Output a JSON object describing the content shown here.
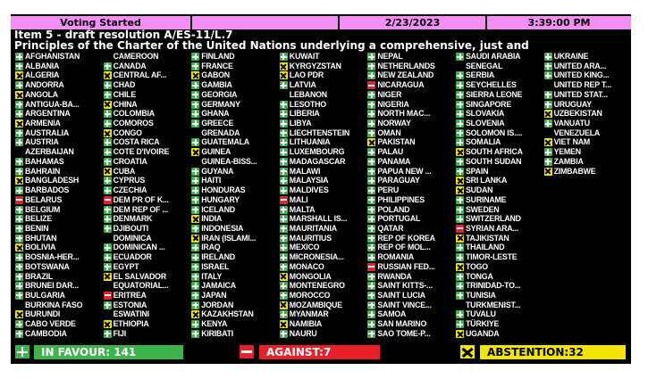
{
  "header": {
    "status": "Voting Started",
    "blank": "",
    "date": "2/23/2023",
    "time": "3:39:00 PM"
  },
  "item": {
    "line1": "Item 5 - draft resolution A/ES-11/L.7",
    "line2": "Principles of the Charter of the United Nations underlying a comprehensive, just and"
  },
  "colors": {
    "yes": "#3cb44b",
    "no": "#e8202a",
    "abstain": "#f2e600",
    "header": "#f58ef5"
  },
  "columns": [
    [
      {
        "name": "AFGHANISTAN",
        "vote": "yes"
      },
      {
        "name": "ALBANIA",
        "vote": "yes"
      },
      {
        "name": "ALGERIA",
        "vote": "abs"
      },
      {
        "name": "ANDORRA",
        "vote": "yes"
      },
      {
        "name": "ANGOLA",
        "vote": "abs"
      },
      {
        "name": "ANTIGUA-BA...",
        "vote": "yes"
      },
      {
        "name": "ARGENTINA",
        "vote": "yes"
      },
      {
        "name": "ARMENIA",
        "vote": "abs"
      },
      {
        "name": "AUSTRALIA",
        "vote": "yes"
      },
      {
        "name": "AUSTRIA",
        "vote": "yes"
      },
      {
        "name": "AZERBAIJAN",
        "vote": "none"
      },
      {
        "name": "BAHAMAS",
        "vote": "yes"
      },
      {
        "name": "BAHRAIN",
        "vote": "yes"
      },
      {
        "name": "BANGLADESH",
        "vote": "abs"
      },
      {
        "name": "BARBADOS",
        "vote": "yes"
      },
      {
        "name": "BELARUS",
        "vote": "no"
      },
      {
        "name": "BELGIUM",
        "vote": "yes"
      },
      {
        "name": "BELIZE",
        "vote": "yes"
      },
      {
        "name": "BENIN",
        "vote": "yes"
      },
      {
        "name": "BHUTAN",
        "vote": "yes"
      },
      {
        "name": "BOLIVIA",
        "vote": "abs"
      },
      {
        "name": "BOSNIA-HER...",
        "vote": "yes"
      },
      {
        "name": "BOTSWANA",
        "vote": "yes"
      },
      {
        "name": "BRAZIL",
        "vote": "yes"
      },
      {
        "name": "BRUNEI DAR...",
        "vote": "yes"
      },
      {
        "name": "BULGARIA",
        "vote": "yes"
      },
      {
        "name": "BURKINA FASO",
        "vote": "none"
      },
      {
        "name": "BURUNDI",
        "vote": "abs"
      },
      {
        "name": "CABO VERDE",
        "vote": "yes"
      },
      {
        "name": "CAMBODIA",
        "vote": "yes"
      }
    ],
    [
      {
        "name": "CAMEROON",
        "vote": "none"
      },
      {
        "name": "CANADA",
        "vote": "yes"
      },
      {
        "name": "CENTRAL AF...",
        "vote": "abs"
      },
      {
        "name": "CHAD",
        "vote": "yes"
      },
      {
        "name": "CHILE",
        "vote": "yes"
      },
      {
        "name": "CHINA",
        "vote": "abs"
      },
      {
        "name": "COLOMBIA",
        "vote": "yes"
      },
      {
        "name": "COMOROS",
        "vote": "yes"
      },
      {
        "name": "CONGO",
        "vote": "abs"
      },
      {
        "name": "COSTA RICA",
        "vote": "yes"
      },
      {
        "name": "COTE D'IVOIRE",
        "vote": "yes"
      },
      {
        "name": "CROATIA",
        "vote": "yes"
      },
      {
        "name": "CUBA",
        "vote": "abs"
      },
      {
        "name": "CYPRUS",
        "vote": "yes"
      },
      {
        "name": "CZECHIA",
        "vote": "yes"
      },
      {
        "name": "DEM PR OF K...",
        "vote": "no"
      },
      {
        "name": "DEM REP OF ...",
        "vote": "yes"
      },
      {
        "name": "DENMARK",
        "vote": "yes"
      },
      {
        "name": "DJIBOUTI",
        "vote": "yes"
      },
      {
        "name": "DOMINICA",
        "vote": "none"
      },
      {
        "name": "DOMINICAN ...",
        "vote": "yes"
      },
      {
        "name": "ECUADOR",
        "vote": "yes"
      },
      {
        "name": "EGYPT",
        "vote": "yes"
      },
      {
        "name": "EL SALVADOR",
        "vote": "abs"
      },
      {
        "name": "EQUATORIAL...",
        "vote": "none"
      },
      {
        "name": "ERITREA",
        "vote": "no"
      },
      {
        "name": "ESTONIA",
        "vote": "yes"
      },
      {
        "name": "ESWATINI",
        "vote": "none"
      },
      {
        "name": "ETHIOPIA",
        "vote": "abs"
      },
      {
        "name": "FIJI",
        "vote": "yes"
      }
    ],
    [
      {
        "name": "FINLAND",
        "vote": "yes"
      },
      {
        "name": "FRANCE",
        "vote": "yes"
      },
      {
        "name": "GABON",
        "vote": "abs"
      },
      {
        "name": "GAMBIA",
        "vote": "yes"
      },
      {
        "name": "GEORGIA",
        "vote": "yes"
      },
      {
        "name": "GERMANY",
        "vote": "yes"
      },
      {
        "name": "GHANA",
        "vote": "yes"
      },
      {
        "name": "GREECE",
        "vote": "yes"
      },
      {
        "name": "GRENADA",
        "vote": "none"
      },
      {
        "name": "GUATEMALA",
        "vote": "yes"
      },
      {
        "name": "GUINEA",
        "vote": "abs"
      },
      {
        "name": "GUINEA-BISS...",
        "vote": "none"
      },
      {
        "name": "GUYANA",
        "vote": "yes"
      },
      {
        "name": "HAITI",
        "vote": "yes"
      },
      {
        "name": "HONDURAS",
        "vote": "yes"
      },
      {
        "name": "HUNGARY",
        "vote": "yes"
      },
      {
        "name": "ICELAND",
        "vote": "yes"
      },
      {
        "name": "INDIA",
        "vote": "abs"
      },
      {
        "name": "INDONESIA",
        "vote": "yes"
      },
      {
        "name": "IRAN (ISLAMI...",
        "vote": "abs"
      },
      {
        "name": "IRAQ",
        "vote": "yes"
      },
      {
        "name": "IRELAND",
        "vote": "yes"
      },
      {
        "name": "ISRAEL",
        "vote": "yes"
      },
      {
        "name": "ITALY",
        "vote": "yes"
      },
      {
        "name": "JAMAICA",
        "vote": "yes"
      },
      {
        "name": "JAPAN",
        "vote": "yes"
      },
      {
        "name": "JORDAN",
        "vote": "yes"
      },
      {
        "name": "KAZAKHSTAN",
        "vote": "abs"
      },
      {
        "name": "KENYA",
        "vote": "yes"
      },
      {
        "name": "KIRIBATI",
        "vote": "yes"
      }
    ],
    [
      {
        "name": "KUWAIT",
        "vote": "yes"
      },
      {
        "name": "KYRGYZSTAN",
        "vote": "abs"
      },
      {
        "name": "LAO PDR",
        "vote": "abs"
      },
      {
        "name": "LATVIA",
        "vote": "yes"
      },
      {
        "name": "LEBANON",
        "vote": "none"
      },
      {
        "name": "LESOTHO",
        "vote": "yes"
      },
      {
        "name": "LIBERIA",
        "vote": "yes"
      },
      {
        "name": "LIBYA",
        "vote": "yes"
      },
      {
        "name": "LIECHTENSTEIN",
        "vote": "yes"
      },
      {
        "name": "LITHUANIA",
        "vote": "yes"
      },
      {
        "name": "LUXEMBOURG",
        "vote": "yes"
      },
      {
        "name": "MADAGASCAR",
        "vote": "yes"
      },
      {
        "name": "MALAWI",
        "vote": "yes"
      },
      {
        "name": "MALAYSIA",
        "vote": "yes"
      },
      {
        "name": "MALDIVES",
        "vote": "yes"
      },
      {
        "name": "MALI",
        "vote": "no"
      },
      {
        "name": "MALTA",
        "vote": "yes"
      },
      {
        "name": "MARSHALL IS...",
        "vote": "yes"
      },
      {
        "name": "MAURITANIA",
        "vote": "yes"
      },
      {
        "name": "MAURITIUS",
        "vote": "yes"
      },
      {
        "name": "MEXICO",
        "vote": "yes"
      },
      {
        "name": "MICRONESIA...",
        "vote": "yes"
      },
      {
        "name": "MONACO",
        "vote": "yes"
      },
      {
        "name": "MONGOLIA",
        "vote": "abs"
      },
      {
        "name": "MONTENEGRO",
        "vote": "yes"
      },
      {
        "name": "MOROCCO",
        "vote": "yes"
      },
      {
        "name": "MOZAMBIQUE",
        "vote": "abs"
      },
      {
        "name": "MYANMAR",
        "vote": "yes"
      },
      {
        "name": "NAMIBIA",
        "vote": "abs"
      },
      {
        "name": "NAURU",
        "vote": "yes"
      }
    ],
    [
      {
        "name": "NEPAL",
        "vote": "yes"
      },
      {
        "name": "NETHERLANDS",
        "vote": "yes"
      },
      {
        "name": "NEW ZEALAND",
        "vote": "yes"
      },
      {
        "name": "NICARAGUA",
        "vote": "no"
      },
      {
        "name": "NIGER",
        "vote": "yes"
      },
      {
        "name": "NIGERIA",
        "vote": "yes"
      },
      {
        "name": "NORTH MAC...",
        "vote": "yes"
      },
      {
        "name": "NORWAY",
        "vote": "yes"
      },
      {
        "name": "OMAN",
        "vote": "yes"
      },
      {
        "name": "PAKISTAN",
        "vote": "abs"
      },
      {
        "name": "PALAU",
        "vote": "yes"
      },
      {
        "name": "PANAMA",
        "vote": "yes"
      },
      {
        "name": "PAPUA NEW ...",
        "vote": "yes"
      },
      {
        "name": "PARAGUAY",
        "vote": "yes"
      },
      {
        "name": "PERU",
        "vote": "yes"
      },
      {
        "name": "PHILIPPINES",
        "vote": "yes"
      },
      {
        "name": "POLAND",
        "vote": "yes"
      },
      {
        "name": "PORTUGAL",
        "vote": "yes"
      },
      {
        "name": "QATAR",
        "vote": "yes"
      },
      {
        "name": "REP OF KOREA",
        "vote": "yes"
      },
      {
        "name": "REP OF MOL...",
        "vote": "yes"
      },
      {
        "name": "ROMANIA",
        "vote": "yes"
      },
      {
        "name": "RUSSIAN FED...",
        "vote": "no"
      },
      {
        "name": "RWANDA",
        "vote": "yes"
      },
      {
        "name": "SAINT KITTS-...",
        "vote": "yes"
      },
      {
        "name": "SAINT LUCIA",
        "vote": "yes"
      },
      {
        "name": "SAINT VINCE...",
        "vote": "yes"
      },
      {
        "name": "SAMOA",
        "vote": "yes"
      },
      {
        "name": "SAN MARINO",
        "vote": "yes"
      },
      {
        "name": "SAO TOME-P...",
        "vote": "yes"
      }
    ],
    [
      {
        "name": "SAUDI ARABIA",
        "vote": "yes"
      },
      {
        "name": "SENEGAL",
        "vote": "none"
      },
      {
        "name": "SERBIA",
        "vote": "yes"
      },
      {
        "name": "SEYCHELLES",
        "vote": "yes"
      },
      {
        "name": "SIERRA LEONE",
        "vote": "yes"
      },
      {
        "name": "SINGAPORE",
        "vote": "yes"
      },
      {
        "name": "SLOVAKIA",
        "vote": "yes"
      },
      {
        "name": "SLOVENIA",
        "vote": "yes"
      },
      {
        "name": "SOLOMON IS....",
        "vote": "yes"
      },
      {
        "name": "SOMALIA",
        "vote": "yes"
      },
      {
        "name": "SOUTH AFRICA",
        "vote": "abs"
      },
      {
        "name": "SOUTH SUDAN",
        "vote": "yes"
      },
      {
        "name": "SPAIN",
        "vote": "yes"
      },
      {
        "name": "SRI LANKA",
        "vote": "abs"
      },
      {
        "name": "SUDAN",
        "vote": "abs"
      },
      {
        "name": "SURINAME",
        "vote": "yes"
      },
      {
        "name": "SWEDEN",
        "vote": "yes"
      },
      {
        "name": "SWITZERLAND",
        "vote": "yes"
      },
      {
        "name": "SYRIAN ARA...",
        "vote": "no"
      },
      {
        "name": "TAJIKISTAN",
        "vote": "abs"
      },
      {
        "name": "THAILAND",
        "vote": "yes"
      },
      {
        "name": "TIMOR-LESTE",
        "vote": "yes"
      },
      {
        "name": "TOGO",
        "vote": "abs"
      },
      {
        "name": "TONGA",
        "vote": "yes"
      },
      {
        "name": "TRINIDAD-TO...",
        "vote": "yes"
      },
      {
        "name": "TUNISIA",
        "vote": "yes"
      },
      {
        "name": "TURKMENIST...",
        "vote": "none"
      },
      {
        "name": "TUVALU",
        "vote": "yes"
      },
      {
        "name": "TÜRKIYE",
        "vote": "yes"
      },
      {
        "name": "UGANDA",
        "vote": "abs"
      }
    ],
    [
      {
        "name": "UKRAINE",
        "vote": "yes"
      },
      {
        "name": "UNITED ARA...",
        "vote": "yes"
      },
      {
        "name": "UNITED KING...",
        "vote": "yes"
      },
      {
        "name": "UNITED REP T...",
        "vote": "none"
      },
      {
        "name": "UNITED STAT...",
        "vote": "yes"
      },
      {
        "name": "URUGUAY",
        "vote": "yes"
      },
      {
        "name": "UZBEKISTAN",
        "vote": "abs"
      },
      {
        "name": "VANUATU",
        "vote": "yes"
      },
      {
        "name": "VENEZUELA",
        "vote": "none"
      },
      {
        "name": "VIET NAM",
        "vote": "abs"
      },
      {
        "name": "YEMEN",
        "vote": "yes"
      },
      {
        "name": "ZAMBIA",
        "vote": "yes"
      },
      {
        "name": "ZIMBABWE",
        "vote": "abs"
      }
    ]
  ],
  "totals": {
    "in_favour": "IN FAVOUR: 141",
    "against": "AGAINST:7",
    "abstention": "ABSTENTION:32"
  }
}
